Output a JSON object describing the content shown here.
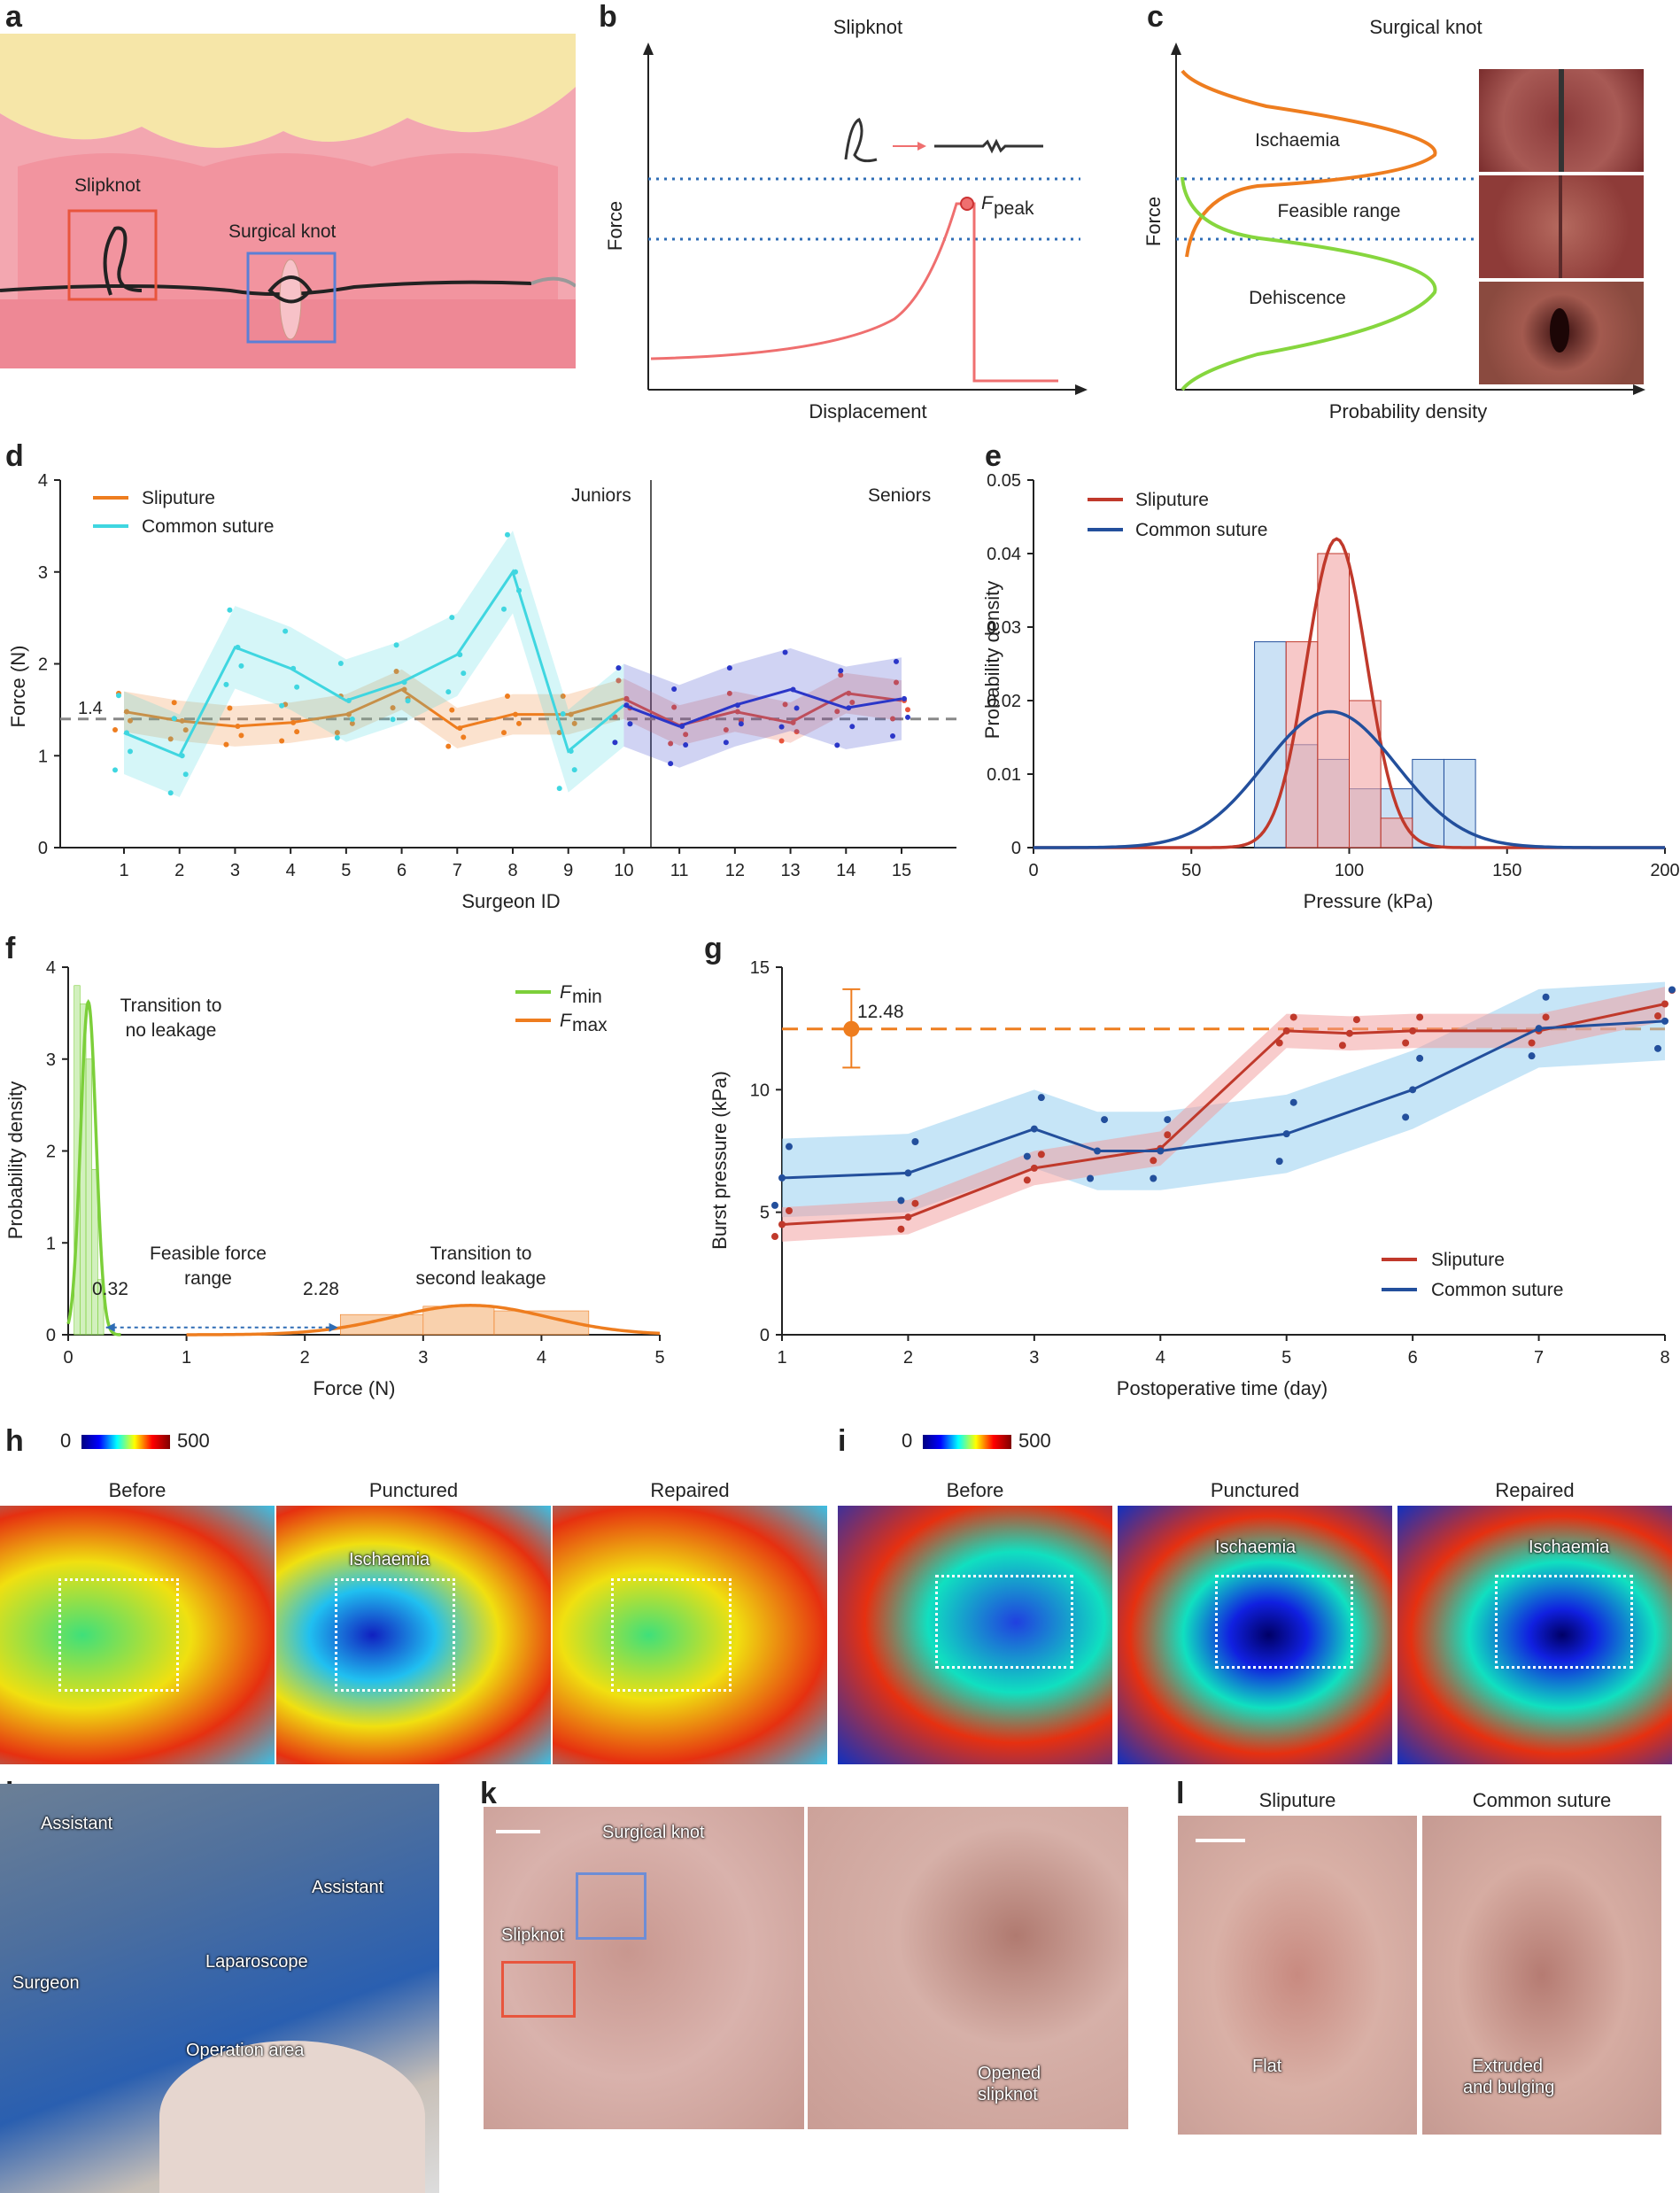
{
  "panels": {
    "a": {
      "letter": "a",
      "labels": {
        "slipknot": "Slipknot",
        "surgical": "Surgical knot"
      }
    },
    "b": {
      "letter": "b",
      "title": "Slipknot",
      "xlabel": "Displacement",
      "ylabel": "Force",
      "peak_label": "F",
      "peak_sub": "peak"
    },
    "c": {
      "letter": "c",
      "title": "Surgical knot",
      "xlabel": "Probability density",
      "ylabel": "Force",
      "regions": {
        "top": "Ischaemia",
        "mid": "Feasible range",
        "bottom": "Dehiscence"
      }
    },
    "d": {
      "letter": "d",
      "xlabel": "Surgeon ID",
      "ylabel": "Force (N)",
      "ref_label": "1.4",
      "group_labels": {
        "juniors": "Juniors",
        "seniors": "Seniors"
      },
      "legend": [
        "Sliputure",
        "Common suture"
      ]
    },
    "e": {
      "letter": "e",
      "xlabel": "Pressure (kPa)",
      "ylabel": "Probability density",
      "legend": [
        "Sliputure",
        "Common suture"
      ]
    },
    "f": {
      "letter": "f",
      "xlabel": "Force (N)",
      "ylabel": "Probability density",
      "legend": [
        {
          "main": "F",
          "sub": "min"
        },
        {
          "main": "F",
          "sub": "max"
        }
      ],
      "annotations": {
        "t1a": "Transition to",
        "t1b": "no leakage",
        "t2a": "Feasible force",
        "t2b": "range",
        "t3a": "Transition to",
        "t3b": "second leakage",
        "v1": "0.32",
        "v2": "2.28"
      }
    },
    "g": {
      "letter": "g",
      "xlabel": "Postoperative time (day)",
      "ylabel": "Burst pressure (kPa)",
      "ref_label": "12.48",
      "legend": [
        "Sliputure",
        "Common suture"
      ]
    },
    "h": {
      "letter": "h",
      "scale_min": "0",
      "scale_max": "500",
      "titles": [
        "Before",
        "Punctured",
        "Repaired"
      ],
      "ischaemia": "Ischaemia"
    },
    "i": {
      "letter": "i",
      "scale_min": "0",
      "scale_max": "500",
      "titles": [
        "Before",
        "Punctured",
        "Repaired"
      ],
      "ischaemia": "Ischaemia"
    },
    "j": {
      "letter": "j",
      "labels": {
        "assistant1": "Assistant",
        "assistant2": "Assistant",
        "surgeon": "Surgeon",
        "laparoscope": "Laparoscope",
        "area": "Operation area"
      }
    },
    "k": {
      "letter": "k",
      "labels": {
        "surgical": "Surgical knot",
        "slipknot": "Slipknot",
        "opened1": "Opened",
        "opened2": "slipknot"
      }
    },
    "l": {
      "letter": "l",
      "titles": [
        "Sliputure",
        "Common suture"
      ],
      "labels": {
        "flat": "Flat",
        "extruded1": "Extruded",
        "extruded2": "and bulging"
      }
    }
  },
  "colors": {
    "sliputure_orange": "#ee7d1f",
    "sliputure_red": "#c0392b",
    "common_cyan": "#3fd6e0",
    "common_blue": "#234f9c",
    "fmin_green": "#7ccf3a",
    "fmax_orange": "#ee7d1f",
    "ref_gray": "#888888",
    "dotted_blue": "#2f6db5"
  },
  "chart_data": [
    {
      "id": "d",
      "type": "line",
      "title": "",
      "xlabel": "Surgeon ID",
      "ylabel": "Force (N)",
      "x": [
        1,
        2,
        3,
        4,
        5,
        6,
        7,
        8,
        9,
        10,
        11,
        12,
        13,
        14,
        15
      ],
      "ylim": [
        0,
        4
      ],
      "reference_line": 1.4,
      "series": [
        {
          "name": "Sliputure",
          "values": [
            1.48,
            1.38,
            1.32,
            1.36,
            1.45,
            1.72,
            1.3,
            1.45,
            1.45,
            1.62,
            1.33,
            1.48,
            1.36,
            1.68,
            1.6
          ]
        },
        {
          "name": "Common suture",
          "values": [
            1.25,
            1.0,
            2.18,
            1.95,
            1.6,
            1.8,
            2.1,
            3.0,
            1.05,
            1.55,
            1.32,
            1.55,
            1.72,
            1.52,
            1.62
          ]
        }
      ]
    },
    {
      "id": "e",
      "type": "bar",
      "title": "",
      "xlabel": "Pressure (kPa)",
      "ylabel": "Probability density",
      "xlim": [
        0,
        200
      ],
      "ylim": [
        0,
        0.05
      ],
      "series": [
        {
          "name": "Sliputure",
          "bins": [
            [
              80,
              90,
              0.028
            ],
            [
              90,
              100,
              0.04
            ],
            [
              100,
              110,
              0.02
            ],
            [
              110,
              120,
              0.004
            ]
          ],
          "fit_mean": 96,
          "fit_peak": 0.042
        },
        {
          "name": "Common suture",
          "bins": [
            [
              70,
              80,
              0.028
            ],
            [
              80,
              90,
              0.014
            ],
            [
              90,
              100,
              0.012
            ],
            [
              100,
              110,
              0.008
            ],
            [
              110,
              120,
              0.008
            ],
            [
              120,
              130,
              0.012
            ],
            [
              130,
              140,
              0.012
            ]
          ],
          "fit_mean": 94,
          "fit_peak": 0.0185
        }
      ]
    },
    {
      "id": "f",
      "type": "area",
      "title": "",
      "xlabel": "Force (N)",
      "ylabel": "Probability density",
      "xlim": [
        0,
        5
      ],
      "ylim": [
        0,
        4
      ],
      "series": [
        {
          "name": "F_min",
          "mean": 0.17,
          "peak": 3.62
        },
        {
          "name": "F_max",
          "mean": 3.4,
          "peak": 0.32
        }
      ],
      "markers": [
        0.32,
        2.28
      ]
    },
    {
      "id": "g",
      "type": "scatter",
      "title": "",
      "xlabel": "Postoperative time (day)",
      "ylabel": "Burst pressure (kPa)",
      "xlim": [
        1,
        8
      ],
      "ylim": [
        0,
        15
      ],
      "reference_line": 12.48,
      "series": [
        {
          "name": "Sliputure",
          "x": [
            1,
            2,
            3,
            4,
            5,
            5.5,
            6,
            7,
            8
          ],
          "values": [
            4.5,
            4.8,
            6.8,
            7.6,
            12.4,
            12.3,
            12.4,
            12.4,
            13.5
          ]
        },
        {
          "name": "Common suture",
          "x": [
            1,
            2,
            3,
            3.5,
            4,
            5,
            6,
            7,
            8
          ],
          "values": [
            6.4,
            6.6,
            8.4,
            7.5,
            7.5,
            8.2,
            10.0,
            12.5,
            12.8
          ]
        }
      ]
    }
  ]
}
